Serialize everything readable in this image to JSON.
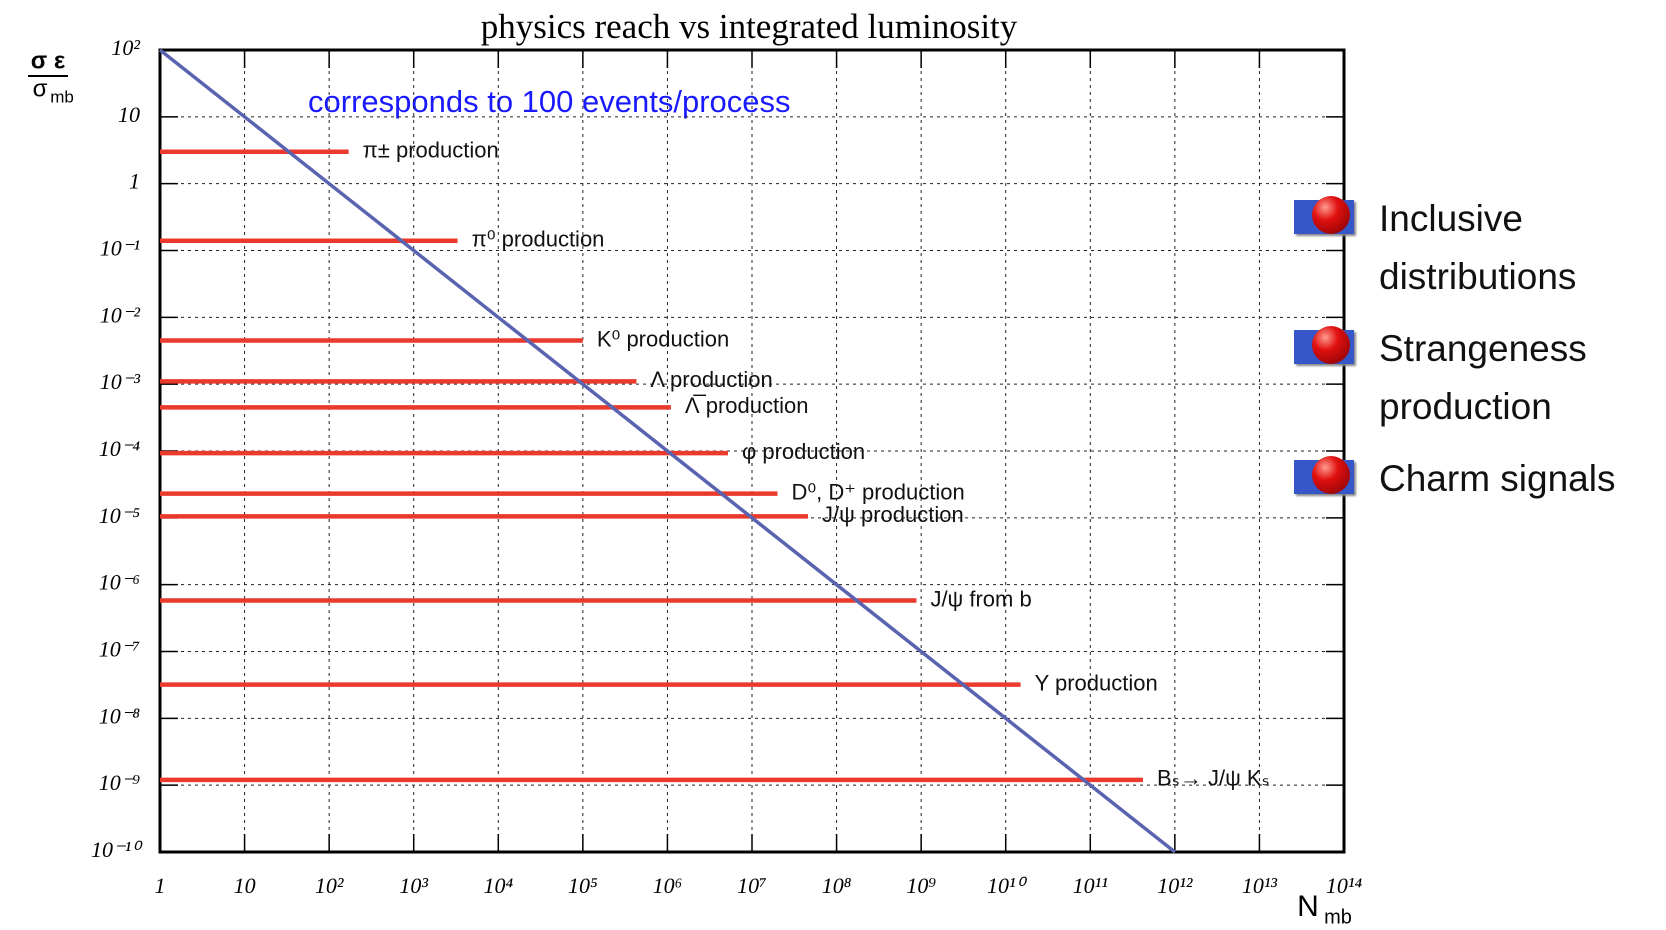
{
  "chart_data": {
    "type": "line",
    "title": "physics reach vs integrated luminosity",
    "annotation": "corresponds to 100 events/process",
    "ylabel": {
      "numerator": "σ ε",
      "symbol": "σ",
      "subscript": "mb"
    },
    "xlabel": {
      "symbol": "N",
      "subscript": "mb"
    },
    "log_x": true,
    "log_y": true,
    "grid": true,
    "xlim": [
      1,
      100000000000000
    ],
    "ylim": [
      1e-10,
      100
    ],
    "xticks": [
      1,
      10,
      {
        "value": 100,
        "label": "10²"
      },
      {
        "value": 1000,
        "label": "10³"
      },
      {
        "value": 10000,
        "label": "10⁴"
      },
      {
        "value": 100000,
        "label": "10⁵"
      },
      {
        "value": 1000000,
        "label": "10⁶"
      },
      {
        "value": 10000000,
        "label": "10⁷"
      },
      {
        "value": 100000000,
        "label": "10⁸"
      },
      {
        "value": 1000000000,
        "label": "10⁹"
      },
      {
        "value": 10000000000,
        "label": "10¹⁰"
      },
      {
        "value": 100000000000,
        "label": "10¹¹"
      },
      {
        "value": 1000000000000,
        "label": "10¹²"
      },
      {
        "value": 10000000000000,
        "label": "10¹³"
      },
      {
        "value": 100000000000000,
        "label": "10¹⁴"
      }
    ],
    "yticks": [
      {
        "value": 100,
        "label": "10²"
      },
      10,
      1,
      {
        "value": 0.1,
        "label": "10⁻¹"
      },
      {
        "value": 0.01,
        "label": "10⁻²"
      },
      {
        "value": 0.001,
        "label": "10⁻³"
      },
      {
        "value": 0.0001,
        "label": "10⁻⁴"
      },
      {
        "value": 1e-05,
        "label": "10⁻⁵"
      },
      {
        "value": 1e-06,
        "label": "10⁻⁶"
      },
      {
        "value": 1e-07,
        "label": "10⁻⁷"
      },
      {
        "value": 1e-08,
        "label": "10⁻⁸"
      },
      {
        "value": 1e-09,
        "label": "10⁻⁹"
      },
      {
        "value": 1e-10,
        "label": "10⁻¹⁰"
      }
    ],
    "line": {
      "color": "#5a63b0",
      "x": [
        1,
        1000000000000
      ],
      "y": [
        100,
        1e-10
      ]
    },
    "bar_color": "#ea3a2e",
    "bars": [
      {
        "label": "π± production",
        "y": 3,
        "x_end": 170
      },
      {
        "label": "π⁰ production",
        "y": 0.14,
        "x_end": 3300
      },
      {
        "label": "K⁰ production",
        "y": 0.0045,
        "x_end": 100000
      },
      {
        "label": "Λ production",
        "y": 0.0011,
        "x_end": 430000
      },
      {
        "label": "Λ̅ production",
        "y": 0.00045,
        "x_end": 1100000
      },
      {
        "label": "φ production",
        "y": 9.3e-05,
        "x_end": 5200000
      },
      {
        "label": "D⁰, D⁺ production",
        "y": 2.3e-05,
        "x_end": 20000000
      },
      {
        "label": "J/ψ production",
        "y": 1.05e-05,
        "x_end": 46000000
      },
      {
        "label": "J/ψ from b",
        "y": 5.8e-07,
        "x_end": 880000000
      },
      {
        "label": "Υ production",
        "y": 3.2e-08,
        "x_end": 15000000000
      },
      {
        "label": "Bₛ→ J/ψ Kₛ",
        "y": 1.2e-09,
        "x_end": 420000000000
      }
    ]
  },
  "bullets": [
    "Inclusive distributions",
    "Strangeness production",
    "Charm signals"
  ]
}
